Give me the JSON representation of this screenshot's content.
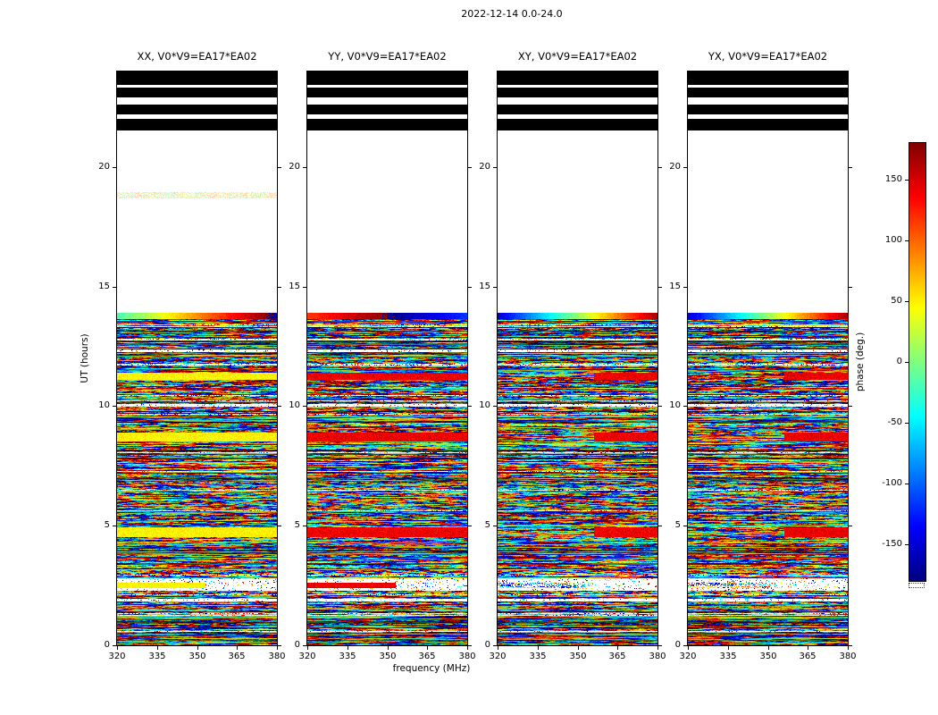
{
  "figure": {
    "title": "2022-12-14 0.0-24.0",
    "background": "#ffffff"
  },
  "chart_data": {
    "type": "heatmap",
    "title": "2022-12-14 0.0-24.0",
    "xlabel": "frequency (MHz)",
    "ylabel": "UT (hours)",
    "x_range_mhz": [
      320,
      380
    ],
    "x_ticks": [
      320,
      335,
      350,
      365,
      380
    ],
    "y_range_hours": [
      0,
      24
    ],
    "y_ticks": [
      0,
      5,
      10,
      15,
      20
    ],
    "panels": [
      {
        "label": "XX",
        "title": "XX, V0*V9=EA17*EA02",
        "bright_phase_deg": 48,
        "bright_style": "solid",
        "top_gradient": {
          "start": -20,
          "span": 210
        }
      },
      {
        "label": "YY",
        "title": "YY, V0*V9=EA17*EA02",
        "bright_phase_deg": 140,
        "bright_style": "solid",
        "top_gradient": {
          "start": 115,
          "span": 130
        }
      },
      {
        "label": "XY",
        "title": "XY, V0*V9=EA17*EA02",
        "bright_phase_deg": 140,
        "bright_style": "right",
        "top_gradient": {
          "start": -150,
          "span": 320
        }
      },
      {
        "label": "YX",
        "title": "YX, V0*V9=EA17*EA02",
        "bright_phase_deg": 142,
        "bright_style": "right",
        "top_gradient": {
          "start": -150,
          "span": 320
        }
      }
    ],
    "colorbar": {
      "label": "phase (deg.)",
      "range_deg": [
        -180,
        180
      ],
      "ticks": [
        150,
        100,
        50,
        0,
        -50,
        -100,
        -150
      ],
      "colormap": "jet",
      "colormap_stops": [
        "#00007f",
        "#0000ff",
        "#00ffff",
        "#ffff00",
        "#ff0000",
        "#7f0000"
      ]
    },
    "regions": [
      {
        "hours": [
          21.52,
          24.0
        ],
        "description": "flagged/saturated solid black rows with thin white gaps"
      },
      {
        "hours": [
          13.9,
          21.52
        ],
        "description": "no data (blank white)"
      },
      {
        "hours": [
          0.0,
          13.9
        ],
        "description": "random interferometric phase noise with horizontal time-band structure"
      }
    ],
    "bands": {
      "black_top": {
        "hours": [
          21.52,
          24.0
        ],
        "white_gaps_hours": [
          [
            22.03,
            22.2
          ],
          [
            22.62,
            22.9
          ],
          [
            23.33,
            23.44
          ]
        ]
      },
      "noise": {
        "hours": [
          0.0,
          13.9
        ]
      },
      "gradient_band_hours": [
        13.66,
        13.9
      ],
      "bright_bands_hours": [
        [
          11.12,
          11.42
        ],
        [
          8.52,
          8.88
        ],
        [
          4.52,
          4.92
        ]
      ],
      "partial_bright_hours": [
        2.4,
        2.62
      ],
      "white_gaps_hours": [
        [
          12.28,
          12.36
        ],
        [
          9.97,
          10.1
        ],
        [
          2.28,
          2.4
        ],
        [
          2.62,
          2.8
        ],
        [
          1.84,
          1.95
        ],
        [
          0.55,
          0.6
        ]
      ],
      "faint_band_xx_hours": [
        18.7,
        18.95
      ]
    },
    "noise_seed": 1234567
  }
}
